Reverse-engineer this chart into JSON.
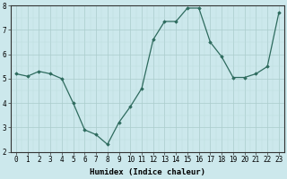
{
  "x": [
    0,
    1,
    2,
    3,
    4,
    5,
    6,
    7,
    8,
    9,
    10,
    11,
    12,
    13,
    14,
    15,
    16,
    17,
    18,
    19,
    20,
    21,
    22,
    23
  ],
  "y": [
    5.2,
    5.1,
    5.3,
    5.2,
    5.0,
    4.0,
    2.9,
    2.7,
    2.3,
    3.2,
    3.85,
    4.6,
    6.6,
    7.35,
    7.35,
    7.9,
    7.9,
    6.5,
    5.9,
    5.05,
    5.05,
    5.2,
    5.5,
    7.7
  ],
  "xlabel": "Humidex (Indice chaleur)",
  "xlim": [
    -0.5,
    23.5
  ],
  "ylim": [
    2,
    8
  ],
  "yticks": [
    2,
    3,
    4,
    5,
    6,
    7,
    8
  ],
  "xticks": [
    0,
    1,
    2,
    3,
    4,
    5,
    6,
    7,
    8,
    9,
    10,
    11,
    12,
    13,
    14,
    15,
    16,
    17,
    18,
    19,
    20,
    21,
    22,
    23
  ],
  "line_color": "#2e6b5e",
  "marker": "D",
  "marker_size": 1.8,
  "bg_color": "#cce8ec",
  "grid_major_color": "#aacccc",
  "grid_minor_color": "#bbdddd",
  "xlabel_fontsize": 6.5,
  "tick_fontsize": 5.5,
  "linewidth": 0.9
}
